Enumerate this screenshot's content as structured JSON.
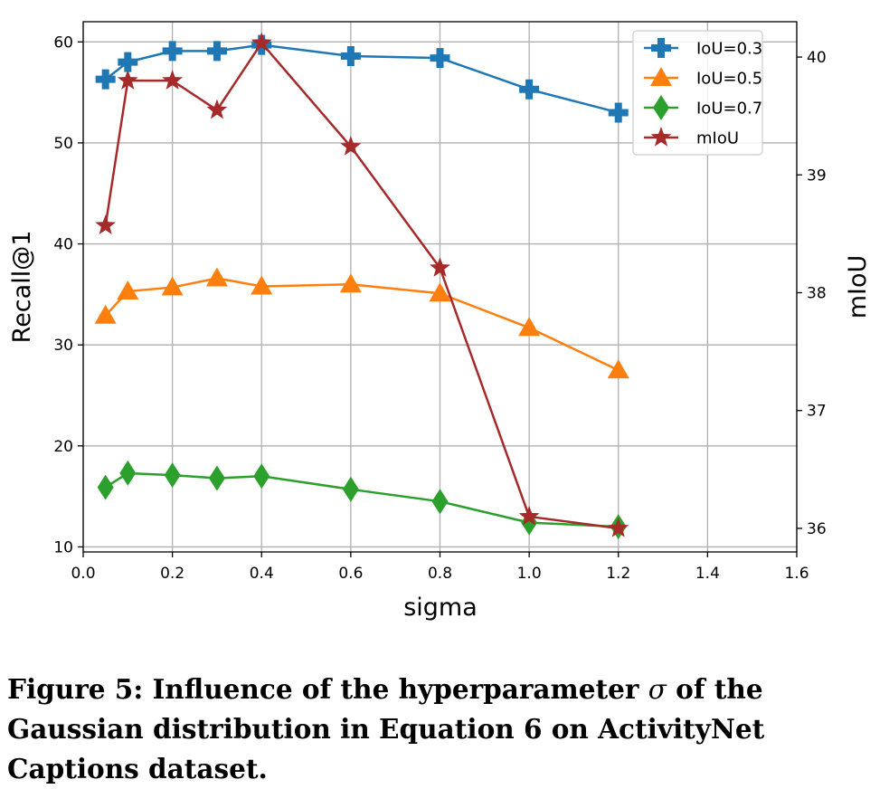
{
  "chart_data": {
    "type": "line",
    "xlabel": "sigma",
    "ylabel_left": "Recall@1",
    "ylabel_right": "mIoU",
    "xlim": [
      0.0,
      1.6
    ],
    "ylim_left": [
      9.5,
      62
    ],
    "ylim_right": [
      35.8,
      40.3
    ],
    "x_ticks": [
      "0.0",
      "0.2",
      "0.4",
      "0.6",
      "0.8",
      "1.0",
      "1.2",
      "1.4",
      "1.6"
    ],
    "y_ticks_left": [
      "10",
      "20",
      "30",
      "40",
      "50",
      "60"
    ],
    "y_ticks_right": [
      "36",
      "37",
      "38",
      "39",
      "40"
    ],
    "grid": true,
    "legend_position": "top-right",
    "x": [
      0.05,
      0.1,
      0.2,
      0.3,
      0.4,
      0.6,
      0.8,
      1.0,
      1.2
    ],
    "series": [
      {
        "name": "IoU=0.3",
        "axis": "left",
        "marker": "plus",
        "color": "#1f77b4",
        "values": [
          56.3,
          58.0,
          59.1,
          59.1,
          59.7,
          58.6,
          58.4,
          55.3,
          53.0
        ]
      },
      {
        "name": "IoU=0.5",
        "axis": "left",
        "marker": "triangle",
        "color": "#ff7f0e",
        "values": [
          32.9,
          35.3,
          35.7,
          36.6,
          35.8,
          36.0,
          35.1,
          31.7,
          27.5
        ]
      },
      {
        "name": "IoU=0.7",
        "axis": "left",
        "marker": "diamond",
        "color": "#2ca02c",
        "values": [
          15.9,
          17.3,
          17.1,
          16.8,
          17.0,
          15.7,
          14.5,
          12.4,
          12.0
        ]
      },
      {
        "name": "mIoU",
        "axis": "right",
        "marker": "star",
        "color": "#a52a2a",
        "values": [
          38.57,
          39.8,
          39.8,
          39.55,
          40.12,
          39.24,
          38.21,
          36.1,
          36.0
        ]
      }
    ]
  },
  "caption": {
    "prefix": "Figure 5: Influence of the hyperparameter ",
    "symbol": "σ",
    "suffix": " of the Gaussian distribution in Equation 6 on ActivityNet Captions dataset."
  }
}
